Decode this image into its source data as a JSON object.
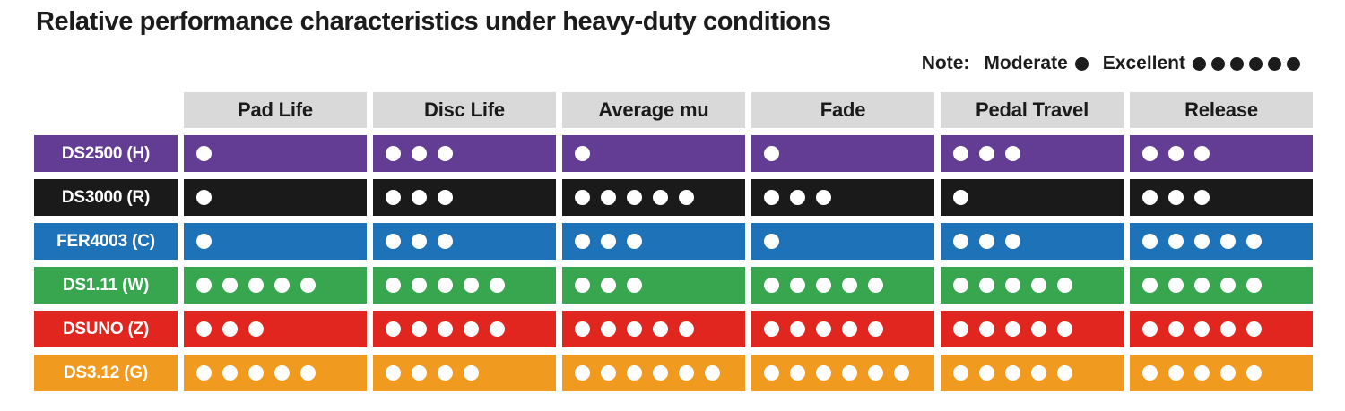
{
  "title": "Relative performance characteristics under heavy-duty conditions",
  "note": {
    "label": "Note:",
    "moderate_label": "Moderate",
    "moderate_dots": 1,
    "excellent_label": "Excellent",
    "excellent_dots": 6
  },
  "columns": [
    "Pad Life",
    "Disc Life",
    "Average mu",
    "Fade",
    "Pedal Travel",
    "Release"
  ],
  "rows": [
    {
      "label": "DS2500 (H)",
      "color": "#633c94",
      "ratings": [
        1,
        3,
        1,
        1,
        3,
        3
      ]
    },
    {
      "label": "DS3000 (R)",
      "color": "#1a1a1a",
      "ratings": [
        1,
        3,
        5,
        3,
        1,
        3
      ]
    },
    {
      "label": "FER4003 (C)",
      "color": "#1e72b8",
      "ratings": [
        1,
        3,
        3,
        1,
        3,
        5
      ]
    },
    {
      "label": "DS1.11 (W)",
      "color": "#37a64e",
      "ratings": [
        5,
        5,
        3,
        5,
        5,
        5
      ]
    },
    {
      "label": "DSUNO (Z)",
      "color": "#e0261f",
      "ratings": [
        3,
        5,
        5,
        5,
        5,
        5
      ]
    },
    {
      "label": "DS3.12 (G)",
      "color": "#f09a20",
      "ratings": [
        5,
        4,
        6,
        6,
        5,
        5
      ]
    }
  ],
  "colors": {
    "header_bg": "#d9d9d9",
    "rating_dot": "#ffffff",
    "note_dot": "#1c1c1c",
    "text": "#1c1c1c",
    "background": "#ffffff"
  },
  "chart_data": {
    "type": "table",
    "title": "Relative performance characteristics under heavy-duty conditions",
    "categories": [
      "Pad Life",
      "Disc Life",
      "Average mu",
      "Fade",
      "Pedal Travel",
      "Release"
    ],
    "series": [
      {
        "name": "DS2500 (H)",
        "values": [
          1,
          3,
          1,
          1,
          3,
          3
        ]
      },
      {
        "name": "DS3000 (R)",
        "values": [
          1,
          3,
          5,
          3,
          1,
          3
        ]
      },
      {
        "name": "FER4003 (C)",
        "values": [
          1,
          3,
          3,
          1,
          3,
          5
        ]
      },
      {
        "name": "DS1.11 (W)",
        "values": [
          5,
          5,
          3,
          5,
          5,
          5
        ]
      },
      {
        "name": "DSUNO (Z)",
        "values": [
          3,
          5,
          5,
          5,
          5,
          5
        ]
      },
      {
        "name": "DS3.12 (G)",
        "values": [
          5,
          4,
          6,
          6,
          5,
          5
        ]
      }
    ],
    "scale": {
      "min_label": "Moderate",
      "min_value": 1,
      "max_label": "Excellent",
      "max_value": 6
    },
    "legend_position": "top-right",
    "grid": false
  }
}
